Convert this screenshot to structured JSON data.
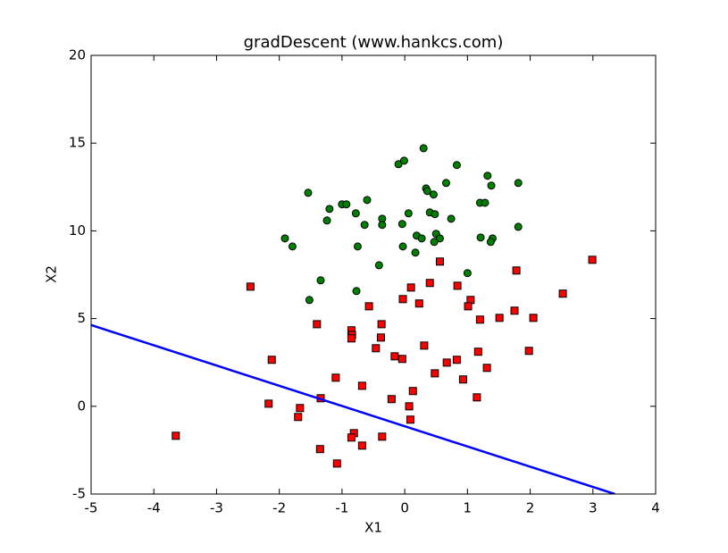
{
  "chart_data": {
    "type": "scatter",
    "title": "gradDescent (www.hankcs.com)",
    "xlabel": "X1",
    "ylabel": "X2",
    "xlim": [
      -5,
      4
    ],
    "ylim": [
      -5,
      20
    ],
    "xticks": [
      -5,
      -4,
      -3,
      -2,
      -1,
      0,
      1,
      2,
      3,
      4
    ],
    "yticks": [
      -5,
      0,
      5,
      10,
      15,
      20
    ],
    "grid": false,
    "series": [
      {
        "type": "scatter",
        "marker": "circle",
        "color": "#008000",
        "x": [
          0.3,
          -0.1,
          -0.01,
          0.83,
          1.32,
          1.38,
          1.81,
          0.66,
          0.34,
          0.36,
          0.46,
          -1.54,
          -0.6,
          -1.2,
          -1.0,
          -0.93,
          -0.78,
          0.06,
          0.4,
          0.48,
          1.2,
          1.28,
          -0.36,
          0.74,
          -1.24,
          -0.36,
          -0.64,
          -0.04,
          1.81,
          0.19,
          0.27,
          0.5,
          0.56,
          0.47,
          -1.91,
          -1.79,
          -0.75,
          -0.03,
          1.21,
          1.4,
          1.37,
          0.17,
          -0.41,
          1.0,
          -1.34,
          -0.77,
          -1.52
        ],
        "values": [
          14.71,
          13.8,
          14.0,
          13.75,
          13.14,
          12.58,
          12.73,
          12.73,
          12.42,
          12.27,
          12.07,
          12.17,
          11.76,
          11.25,
          11.51,
          11.51,
          11.0,
          11.0,
          11.05,
          10.95,
          11.6,
          11.6,
          10.69,
          10.69,
          10.59,
          10.34,
          10.34,
          10.39,
          10.23,
          9.73,
          9.57,
          9.83,
          9.57,
          9.37,
          9.57,
          9.11,
          9.11,
          9.11,
          9.62,
          9.57,
          9.37,
          8.76,
          8.04,
          7.59,
          7.18,
          6.57,
          6.06
        ]
      },
      {
        "type": "scatter",
        "marker": "square",
        "color": "#ff0000",
        "x": [
          -2.46,
          2.99,
          1.78,
          0.56,
          0.4,
          0.84,
          0.1,
          2.52,
          -0.03,
          0.23,
          1.05,
          1.01,
          -0.57,
          1.75,
          1.51,
          1.2,
          2.05,
          -1.4,
          -0.37,
          -0.85,
          -0.84,
          -0.85,
          -0.38,
          0.31,
          -0.46,
          1.17,
          1.98,
          -2.12,
          -0.16,
          -0.04,
          0.83,
          0.67,
          1.31,
          0.48,
          -1.1,
          0.93,
          -0.68,
          0.13,
          1.15,
          -0.21,
          -1.34,
          -2.17,
          0.07,
          -1.67,
          -1.7,
          0.09,
          -3.65,
          -0.81,
          -0.85,
          -0.36,
          -0.68,
          -1.35,
          -1.08
        ],
        "values": [
          6.82,
          8.35,
          7.74,
          8.25,
          7.03,
          6.87,
          6.77,
          6.42,
          6.11,
          5.86,
          6.06,
          5.7,
          5.7,
          5.45,
          5.04,
          4.94,
          5.04,
          4.68,
          4.68,
          4.33,
          4.07,
          3.87,
          3.92,
          3.46,
          3.31,
          3.11,
          3.16,
          2.65,
          2.85,
          2.7,
          2.65,
          2.49,
          2.19,
          1.88,
          1.63,
          1.53,
          1.17,
          0.87,
          0.51,
          0.41,
          0.46,
          0.15,
          0.0,
          -0.1,
          -0.61,
          -0.76,
          -1.68,
          -1.53,
          -1.78,
          -1.73,
          -2.24,
          -2.44,
          -3.26
        ]
      },
      {
        "type": "line",
        "color": "#0000ff",
        "x": [
          -5,
          3.35
        ],
        "values": [
          4.63,
          -5
        ]
      }
    ]
  }
}
